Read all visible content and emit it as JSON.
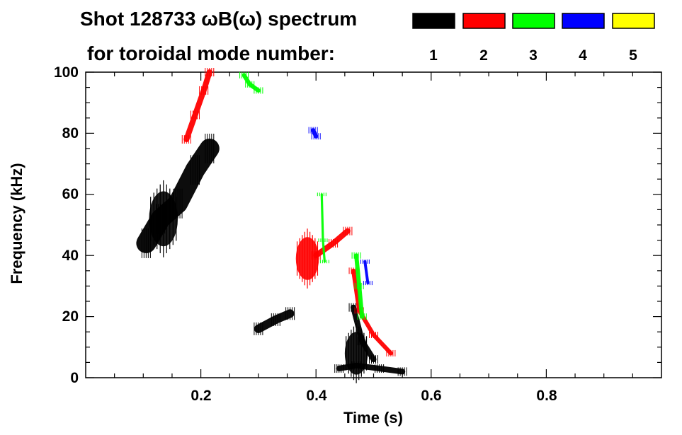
{
  "header": {
    "title": "Shot 128733 ωB(ω) spectrum",
    "legend_caption": "for toroidal mode number:"
  },
  "legend": [
    {
      "label": "1",
      "color": "#000000"
    },
    {
      "label": "2",
      "color": "#ff0000"
    },
    {
      "label": "3",
      "color": "#00ff00"
    },
    {
      "label": "4",
      "color": "#0000ff"
    },
    {
      "label": "5",
      "color": "#ffff00"
    }
  ],
  "chart_data": {
    "type": "spectrogram",
    "title": "Shot 128733 ωB(ω) spectrum",
    "xlabel": "Time (s)",
    "ylabel": "Frequency (kHz)",
    "xlim": [
      0.0,
      1.0
    ],
    "ylim": [
      0,
      100
    ],
    "x_ticks": [
      0.2,
      0.4,
      0.6,
      0.8
    ],
    "x_tick_labels": [
      "0.2",
      "0.4",
      "0.6",
      "0.8"
    ],
    "y_ticks": [
      0,
      20,
      40,
      60,
      80,
      100
    ],
    "y_tick_labels": [
      "0",
      "20",
      "40",
      "60",
      "80",
      "100"
    ],
    "series": [
      {
        "mode": 1,
        "color": "#000000",
        "features": [
          {
            "kind": "band",
            "path": [
              [
                0.105,
                44
              ],
              [
                0.13,
                52
              ],
              [
                0.16,
                57
              ],
              [
                0.19,
                68
              ],
              [
                0.215,
                75
              ]
            ],
            "width": 7
          },
          {
            "kind": "blob",
            "cx": 0.135,
            "cy": 52,
            "rx": 0.025,
            "ry": 9
          },
          {
            "kind": "band",
            "path": [
              [
                0.3,
                16
              ],
              [
                0.33,
                19
              ],
              [
                0.355,
                21
              ]
            ],
            "width": 3
          },
          {
            "kind": "band",
            "path": [
              [
                0.44,
                3
              ],
              [
                0.47,
                4
              ],
              [
                0.51,
                3
              ],
              [
                0.55,
                2
              ]
            ],
            "width": 2
          },
          {
            "kind": "blob",
            "cx": 0.47,
            "cy": 8,
            "rx": 0.02,
            "ry": 7
          },
          {
            "kind": "band",
            "path": [
              [
                0.465,
                23
              ],
              [
                0.48,
                12
              ],
              [
                0.5,
                6
              ]
            ],
            "width": 2
          }
        ]
      },
      {
        "mode": 2,
        "color": "#ff0000",
        "features": [
          {
            "kind": "band",
            "path": [
              [
                0.175,
                78
              ],
              [
                0.19,
                86
              ],
              [
                0.205,
                94
              ],
              [
                0.215,
                100
              ]
            ],
            "width": 2
          },
          {
            "kind": "blob",
            "cx": 0.385,
            "cy": 39,
            "rx": 0.02,
            "ry": 7
          },
          {
            "kind": "band",
            "path": [
              [
                0.4,
                40
              ],
              [
                0.43,
                44
              ],
              [
                0.455,
                48
              ]
            ],
            "width": 2
          },
          {
            "kind": "band",
            "path": [
              [
                0.465,
                35
              ],
              [
                0.475,
                22
              ],
              [
                0.5,
                14
              ],
              [
                0.53,
                8
              ]
            ],
            "width": 1.5
          }
        ]
      },
      {
        "mode": 3,
        "color": "#00ff00",
        "features": [
          {
            "kind": "band",
            "path": [
              [
                0.275,
                99
              ],
              [
                0.285,
                96
              ],
              [
                0.3,
                94
              ]
            ],
            "width": 1.5
          },
          {
            "kind": "band",
            "path": [
              [
                0.47,
                40
              ],
              [
                0.475,
                30
              ],
              [
                0.48,
                20
              ]
            ],
            "width": 1.5
          },
          {
            "kind": "band",
            "path": [
              [
                0.41,
                60
              ],
              [
                0.412,
                45
              ],
              [
                0.415,
                38
              ]
            ],
            "width": 0.8
          }
        ]
      },
      {
        "mode": 4,
        "color": "#0000ff",
        "features": [
          {
            "kind": "band",
            "path": [
              [
                0.395,
                81
              ],
              [
                0.4,
                79
              ]
            ],
            "width": 1.5
          },
          {
            "kind": "band",
            "path": [
              [
                0.485,
                38
              ],
              [
                0.49,
                31
              ]
            ],
            "width": 1
          }
        ]
      },
      {
        "mode": 5,
        "color": "#ffff00",
        "features": []
      }
    ]
  }
}
